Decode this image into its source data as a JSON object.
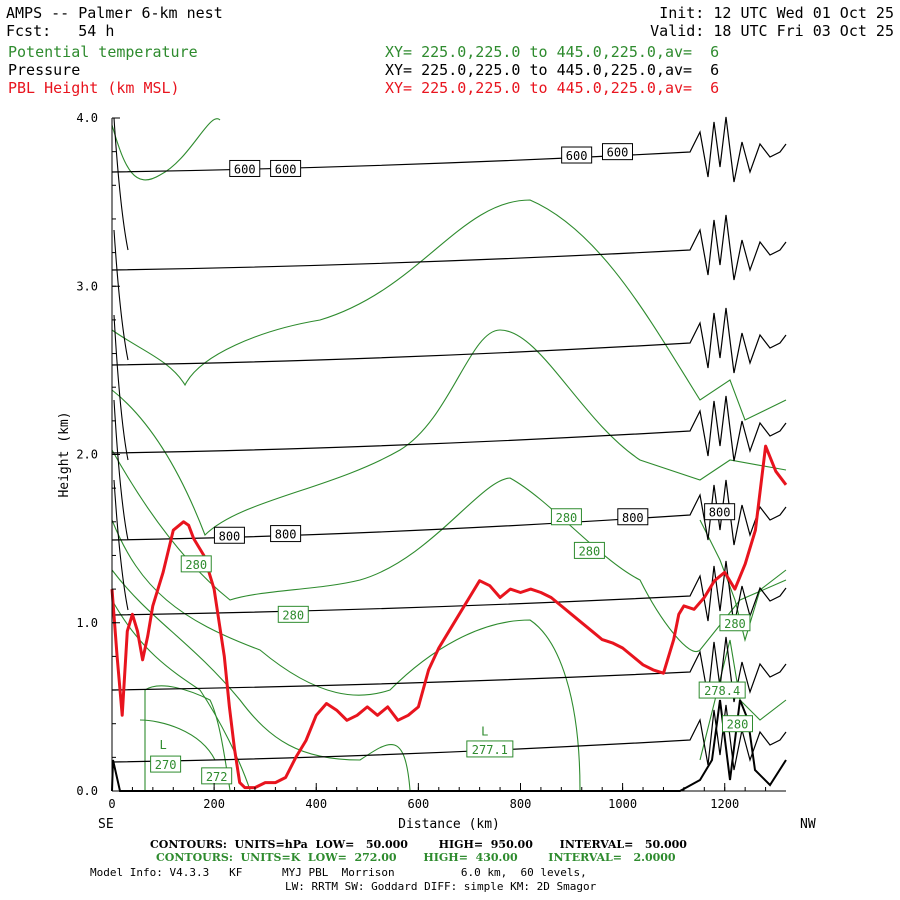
{
  "header": {
    "title": "AMPS -- Palmer 6-km nest",
    "fcst": "Fcst:   54 h",
    "init": "Init: 12 UTC Wed 01 Oct 25",
    "valid": "Valid: 18 UTC Fri 03 Oct 25",
    "field1_name": "Potential temperature",
    "field2_name": "Pressure",
    "field3_name": "PBL Height (km MSL)",
    "field1_xy": "XY= 225.0,225.0 to 445.0,225.0,av=  6",
    "field2_xy": "XY= 225.0,225.0 to 445.0,225.0,av=  6",
    "field3_xy": "XY= 225.0,225.0 to 445.0,225.0,av=  6"
  },
  "footer": {
    "contours_hpa": "CONTOURS:  UNITS=hPa  LOW=   50.000        HIGH=  950.00       INTERVAL=   50.000",
    "contours_k": "CONTOURS:  UNITS=K  LOW=  272.00       HIGH=  430.00        INTERVAL=   2.0000",
    "model_info": "Model Info: V4.3.3   KF      MYJ PBL  Morrison          6.0 km,  60 levels,",
    "physics": "LW: RRTM SW: Goddard DIFF: simple KM: 2D Smagor"
  },
  "colors": {
    "theta": "#2e8b2e",
    "pressure": "#000000",
    "pbl": "#e8141e"
  },
  "chart_data": {
    "type": "line",
    "xlabel": "Distance (km)",
    "ylabel": "Height (km)",
    "xlim": [
      0,
      1320
    ],
    "ylim": [
      0,
      4.0
    ],
    "x_ticks": [
      "0",
      "200",
      "400",
      "600",
      "800",
      "1000",
      "1200"
    ],
    "y_ticks": [
      "0.0",
      "1.0",
      "2.0",
      "3.0",
      "4.0"
    ],
    "x_left_label": "SE",
    "x_right_label": "NW",
    "pbl_height": {
      "name": "PBL Height (km MSL)",
      "x": [
        0,
        10,
        20,
        30,
        40,
        50,
        60,
        70,
        80,
        100,
        120,
        140,
        150,
        160,
        180,
        200,
        210,
        220,
        230,
        240,
        250,
        260,
        280,
        300,
        320,
        340,
        360,
        380,
        400,
        420,
        440,
        460,
        480,
        500,
        520,
        540,
        560,
        580,
        600,
        620,
        640,
        660,
        680,
        700,
        720,
        740,
        760,
        780,
        800,
        820,
        840,
        860,
        880,
        900,
        920,
        940,
        960,
        980,
        1000,
        1020,
        1040,
        1060,
        1080,
        1100,
        1110,
        1120,
        1140,
        1160,
        1180,
        1200,
        1220,
        1240,
        1260,
        1280,
        1300,
        1320
      ],
      "y": [
        1.2,
        0.8,
        0.45,
        0.95,
        1.05,
        0.95,
        0.78,
        0.92,
        1.1,
        1.3,
        1.55,
        1.6,
        1.58,
        1.5,
        1.4,
        1.2,
        1.0,
        0.8,
        0.5,
        0.25,
        0.05,
        0.02,
        0.02,
        0.05,
        0.05,
        0.08,
        0.2,
        0.3,
        0.45,
        0.52,
        0.48,
        0.42,
        0.45,
        0.5,
        0.45,
        0.5,
        0.42,
        0.45,
        0.5,
        0.72,
        0.85,
        0.95,
        1.05,
        1.15,
        1.25,
        1.22,
        1.15,
        1.2,
        1.18,
        1.2,
        1.18,
        1.15,
        1.1,
        1.05,
        1.0,
        0.95,
        0.9,
        0.88,
        0.85,
        0.8,
        0.75,
        0.72,
        0.7,
        0.9,
        1.05,
        1.1,
        1.08,
        1.15,
        1.25,
        1.3,
        1.2,
        1.35,
        1.55,
        2.05,
        1.9,
        1.82
      ]
    },
    "pressure_labels": [
      {
        "text": "600",
        "x": 260,
        "y": 3.7
      },
      {
        "text": "600",
        "x": 340,
        "y": 3.7
      },
      {
        "text": "600",
        "x": 910,
        "y": 3.78
      },
      {
        "text": "600",
        "x": 990,
        "y": 3.8
      },
      {
        "text": "800",
        "x": 230,
        "y": 1.52
      },
      {
        "text": "800",
        "x": 340,
        "y": 1.53
      },
      {
        "text": "800",
        "x": 1020,
        "y": 1.63
      },
      {
        "text": "800",
        "x": 1190,
        "y": 1.66
      }
    ],
    "theta_labels": [
      {
        "text": "280",
        "x": 165,
        "y": 1.35
      },
      {
        "text": "280",
        "x": 355,
        "y": 1.05
      },
      {
        "text": "280",
        "x": 890,
        "y": 1.63
      },
      {
        "text": "280",
        "x": 935,
        "y": 1.43
      },
      {
        "text": "280",
        "x": 1220,
        "y": 1.0
      },
      {
        "text": "270",
        "x": 105,
        "y": 0.16
      },
      {
        "text": "272",
        "x": 205,
        "y": 0.09
      },
      {
        "text": "277.1",
        "x": 740,
        "y": 0.25
      },
      {
        "text": "278.4",
        "x": 1195,
        "y": 0.6
      },
      {
        "text": "280",
        "x": 1225,
        "y": 0.4
      }
    ],
    "extrema_labels": [
      {
        "text": "L",
        "x": 100,
        "y": 0.25
      },
      {
        "text": "L",
        "x": 730,
        "y": 0.33
      }
    ]
  }
}
